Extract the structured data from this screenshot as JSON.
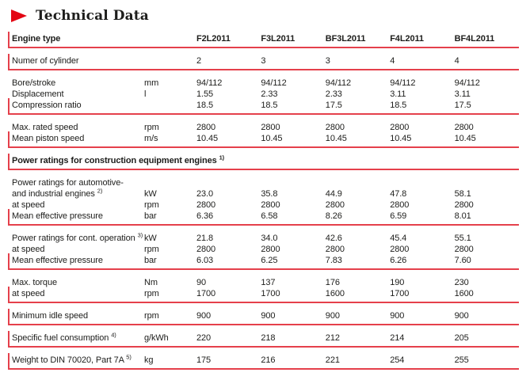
{
  "title": {
    "text": "Technical Data",
    "icon": "red-arrow-right"
  },
  "colors": {
    "accent": "#e30613",
    "rule": "#e5404b",
    "text": "#1d1d1b"
  },
  "table": {
    "columns": [
      "F2L2011",
      "F3L2011",
      "BF3L2011",
      "F4L2011",
      "BF4L2011"
    ],
    "blocks": [
      {
        "rows": [
          {
            "label": "Engine type",
            "bold": true,
            "unit": "",
            "values": [
              "F2L2011",
              "F3L2011",
              "BF3L2011",
              "F4L2011",
              "BF4L2011"
            ],
            "values_bold": true
          }
        ]
      },
      {
        "rows": [
          {
            "label": "Numer of cylinder",
            "unit": "",
            "values": [
              "2",
              "3",
              "3",
              "4",
              "4"
            ]
          }
        ]
      },
      {
        "rows": [
          {
            "label": "Bore/stroke",
            "unit": "mm",
            "values": [
              "94/112",
              "94/112",
              "94/112",
              "94/112",
              "94/112"
            ]
          },
          {
            "label": "Displacement",
            "unit": "l",
            "values": [
              "1.55",
              "2.33",
              "2.33",
              "3.11",
              "3.11"
            ]
          },
          {
            "label": "Compression ratio",
            "unit": "",
            "values": [
              "18.5",
              "18.5",
              "17.5",
              "18.5",
              "17.5"
            ]
          }
        ]
      },
      {
        "rows": [
          {
            "label": "Max. rated speed",
            "unit": "rpm",
            "values": [
              "2800",
              "2800",
              "2800",
              "2800",
              "2800"
            ]
          },
          {
            "label": "Mean piston speed",
            "unit": "m/s",
            "values": [
              "10.45",
              "10.45",
              "10.45",
              "10.45",
              "10.45"
            ]
          }
        ]
      },
      {
        "section": true,
        "rows": [
          {
            "label": "Power ratings for construction equipment engines",
            "sup": "1)",
            "bold": true
          }
        ]
      },
      {
        "rows": [
          {
            "label": "Power ratings for automotive-"
          },
          {
            "label": "and industrial engines",
            "sup": "2)",
            "unit": "kW",
            "values": [
              "23.0",
              "35.8",
              "44.9",
              "47.8",
              "58.1"
            ]
          },
          {
            "label": "at speed",
            "unit": "rpm",
            "values": [
              "2800",
              "2800",
              "2800",
              "2800",
              "2800"
            ]
          },
          {
            "label": "Mean effective pressure",
            "unit": "bar",
            "values": [
              "6.36",
              "6.58",
              "8.26",
              "6.59",
              "8.01"
            ]
          }
        ]
      },
      {
        "rows": [
          {
            "label": "Power ratings for cont. operation",
            "sup": "3)",
            "unit": "kW",
            "values": [
              "21.8",
              "34.0",
              "42.6",
              "45.4",
              "55.1"
            ]
          },
          {
            "label": "at speed",
            "unit": "rpm",
            "values": [
              "2800",
              "2800",
              "2800",
              "2800",
              "2800"
            ]
          },
          {
            "label": "Mean effective pressure",
            "unit": "bar",
            "values": [
              "6.03",
              "6.25",
              "7.83",
              "6.26",
              "7.60"
            ]
          }
        ]
      },
      {
        "rows": [
          {
            "label": "Max. torque",
            "unit": "Nm",
            "values": [
              "90",
              "137",
              "176",
              "190",
              "230"
            ]
          },
          {
            "label": "at speed",
            "unit": "rpm",
            "values": [
              "1700",
              "1700",
              "1600",
              "1700",
              "1600"
            ]
          }
        ]
      },
      {
        "rows": [
          {
            "label": "Minimum idle speed",
            "unit": "rpm",
            "values": [
              "900",
              "900",
              "900",
              "900",
              "900"
            ]
          }
        ]
      },
      {
        "rows": [
          {
            "label": "Specific fuel consumption",
            "sup": "4)",
            "unit": "g/kWh",
            "values": [
              "220",
              "218",
              "212",
              "214",
              "205"
            ]
          }
        ]
      },
      {
        "rows": [
          {
            "label": "Weight to DIN 70020, Part 7A",
            "sup": "5)",
            "unit": "kg",
            "values": [
              "175",
              "216",
              "221",
              "254",
              "255"
            ]
          }
        ]
      }
    ]
  }
}
